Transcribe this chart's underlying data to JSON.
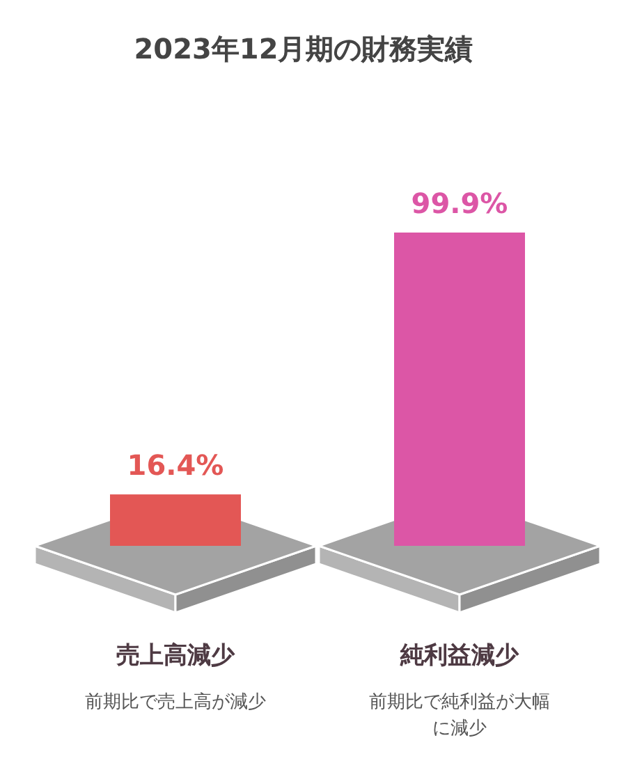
{
  "chart_data": {
    "type": "bar",
    "title": "2023年12月期の財務実績",
    "categories": [
      "売上高減少",
      "純利益減少"
    ],
    "values": [
      16.4,
      99.9
    ],
    "colors": [
      "#e35755",
      "#dc56a6"
    ],
    "value_labels": [
      "16.4%",
      "99.9%"
    ],
    "annotations": [
      "前期比で売上高が減少",
      "前期比で純利益が大幅に減少"
    ]
  }
}
